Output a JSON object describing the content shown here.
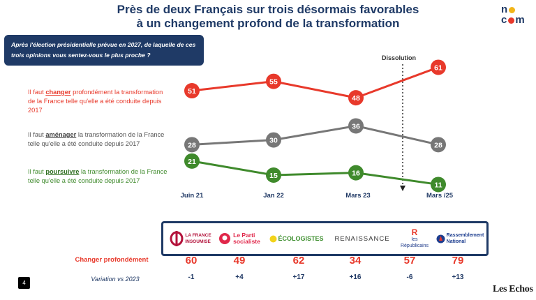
{
  "header": {
    "title_line1": "Près de deux Français sur trois désormais favorables",
    "title_line2": "à un changement profond de la transformation",
    "logo_nocom": [
      "no",
      "com"
    ]
  },
  "question": "Après l'élection présidentielle prévue en 2027, de laquelle de ces trois opinions vous sentez-vous le plus proche ?",
  "opinions": {
    "changer": {
      "pre": "Il faut ",
      "key": "changer",
      "post": " profondément la transformation de la France telle qu'elle a été conduite depuis 2017"
    },
    "amenager": {
      "pre": "Il faut ",
      "key": "aménager",
      "post": " la transformation de la France telle qu'elle a été conduite depuis 2017"
    },
    "poursuivre": {
      "pre": "Il faut ",
      "key": "poursuivre",
      "post": " la transformation de la France telle qu'elle a été conduite depuis 2017"
    }
  },
  "chart_data": {
    "type": "line",
    "categories": [
      "Juin 21",
      "Jan 22",
      "Mars 23",
      "Mars /25"
    ],
    "series": [
      {
        "name": "changer",
        "color": "#e8392b",
        "values": [
          51,
          55,
          48,
          61
        ]
      },
      {
        "name": "aménager",
        "color": "#777777",
        "values": [
          28,
          30,
          36,
          28
        ]
      },
      {
        "name": "poursuivre",
        "color": "#3f8a2c",
        "values": [
          21,
          15,
          16,
          11
        ]
      }
    ],
    "annotation": "Dissolution",
    "grid": false
  },
  "parties": {
    "row_label": "Changer profondément",
    "variation_label": "Variation vs 2023",
    "items": [
      {
        "name_l1": "LA FRANCE",
        "name_l2": "INSOUMISE",
        "color": "#b3123b",
        "score": "60",
        "variation": "-1"
      },
      {
        "name_l1": "Le Parti",
        "name_l2": "socialiste",
        "color": "#e0274a",
        "score": "49",
        "variation": "+4"
      },
      {
        "name_l1": "ÉCOLOGISTES",
        "name_l2": "",
        "color": "#3e8f2f",
        "score": "62",
        "variation": "+17"
      },
      {
        "name_l1": "RENAISSANCE",
        "name_l2": "",
        "color": "#333333",
        "score": "34",
        "variation": "+16"
      },
      {
        "name_l1": "les",
        "name_l2": "Républicains",
        "color": "#1e3a8a",
        "score": "57",
        "variation": "-6"
      },
      {
        "name_l1": "Rassemblement",
        "name_l2": "National",
        "color": "#1d3e8f",
        "score": "79",
        "variation": "+13"
      }
    ]
  },
  "footer": {
    "page_number": "4",
    "brand": "Les Echos"
  },
  "colors": {
    "navy": "#1f3a66",
    "red": "#e8392b",
    "grey": "#777777",
    "green": "#3f8a2c"
  }
}
